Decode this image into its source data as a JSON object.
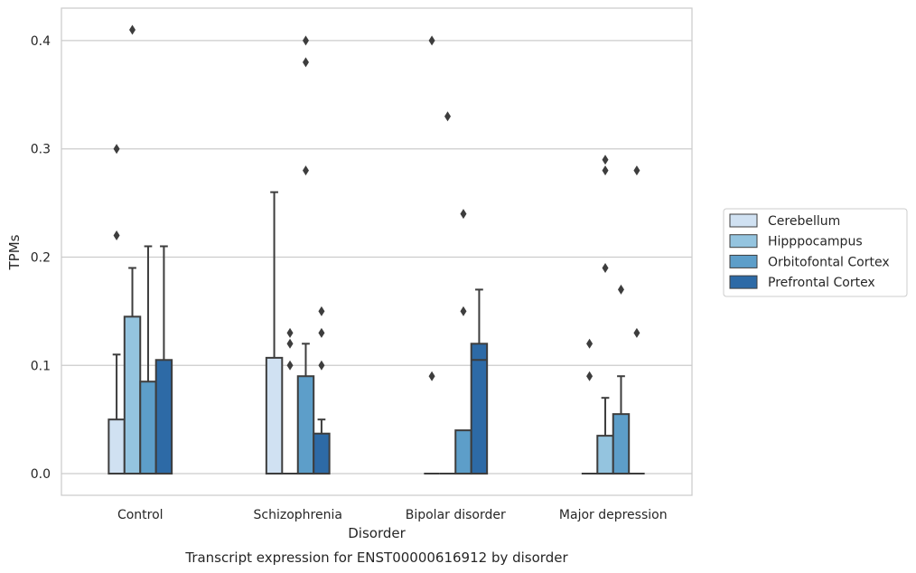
{
  "caption": "Transcript expression for ENST00000616912 by disorder",
  "chart_data": {
    "type": "box",
    "title": "",
    "xlabel": "Disorder",
    "ylabel": "TPMs",
    "ylim": [
      -0.02,
      0.43
    ],
    "yticks": [
      0.0,
      0.1,
      0.2,
      0.3,
      0.4
    ],
    "ytick_labels": [
      "0.0",
      "0.1",
      "0.2",
      "0.3",
      "0.4"
    ],
    "grid": "horizontal",
    "legend_position": "right",
    "categories": [
      "Control",
      "Schizophrenia",
      "Bipolar disorder",
      "Major depression"
    ],
    "series": [
      {
        "name": "Cerebellum",
        "color": "#d0e1f2",
        "boxes": [
          {
            "q1": 0.0,
            "median": 0.0,
            "q3": 0.05,
            "whisker_low": 0.0,
            "whisker_high": 0.11,
            "outliers": [
              0.22,
              0.3
            ]
          },
          {
            "q1": 0.0,
            "median": 0.0,
            "q3": 0.107,
            "whisker_low": 0.0,
            "whisker_high": 0.26,
            "outliers": []
          },
          {
            "q1": 0.0,
            "median": 0.0,
            "q3": 0.0,
            "whisker_low": 0.0,
            "whisker_high": 0.0,
            "outliers": [
              0.09,
              0.4
            ]
          },
          {
            "q1": 0.0,
            "median": 0.0,
            "q3": 0.0,
            "whisker_low": 0.0,
            "whisker_high": 0.0,
            "outliers": [
              0.09,
              0.12
            ]
          }
        ]
      },
      {
        "name": "Hipppocampus",
        "color": "#94c4df",
        "boxes": [
          {
            "q1": 0.0,
            "median": 0.0,
            "q3": 0.145,
            "whisker_low": 0.0,
            "whisker_high": 0.19,
            "outliers": [
              0.41
            ]
          },
          {
            "q1": 0.0,
            "median": 0.0,
            "q3": 0.0,
            "whisker_low": 0.0,
            "whisker_high": 0.0,
            "outliers": [
              0.1,
              0.12,
              0.13
            ]
          },
          {
            "q1": 0.0,
            "median": 0.0,
            "q3": 0.0,
            "whisker_low": 0.0,
            "whisker_high": 0.0,
            "outliers": [
              0.33
            ]
          },
          {
            "q1": 0.0,
            "median": 0.0,
            "q3": 0.035,
            "whisker_low": 0.0,
            "whisker_high": 0.07,
            "outliers": [
              0.19,
              0.28,
              0.29
            ]
          }
        ]
      },
      {
        "name": "Orbitofontal Cortex",
        "color": "#5d9ec9",
        "boxes": [
          {
            "q1": 0.0,
            "median": 0.0,
            "q3": 0.085,
            "whisker_low": 0.0,
            "whisker_high": 0.21,
            "outliers": []
          },
          {
            "q1": 0.0,
            "median": 0.0,
            "q3": 0.09,
            "whisker_low": 0.0,
            "whisker_high": 0.12,
            "outliers": [
              0.28,
              0.38,
              0.4
            ]
          },
          {
            "q1": 0.0,
            "median": 0.0,
            "q3": 0.04,
            "whisker_low": 0.0,
            "whisker_high": 0.04,
            "outliers": [
              0.15,
              0.24
            ]
          },
          {
            "q1": 0.0,
            "median": 0.0,
            "q3": 0.055,
            "whisker_low": 0.0,
            "whisker_high": 0.09,
            "outliers": [
              0.17
            ]
          }
        ]
      },
      {
        "name": "Prefrontal Cortex",
        "color": "#2d6aa6",
        "boxes": [
          {
            "q1": 0.0,
            "median": 0.0,
            "q3": 0.105,
            "whisker_low": 0.0,
            "whisker_high": 0.21,
            "outliers": []
          },
          {
            "q1": 0.0,
            "median": 0.0,
            "q3": 0.037,
            "whisker_low": 0.0,
            "whisker_high": 0.05,
            "outliers": [
              0.1,
              0.13,
              0.15
            ]
          },
          {
            "q1": 0.0,
            "median": 0.105,
            "q3": 0.12,
            "whisker_low": 0.0,
            "whisker_high": 0.17,
            "outliers": []
          },
          {
            "q1": 0.0,
            "median": 0.0,
            "q3": 0.0,
            "whisker_low": 0.0,
            "whisker_high": 0.0,
            "outliers": [
              0.13,
              0.28
            ]
          }
        ]
      }
    ]
  }
}
